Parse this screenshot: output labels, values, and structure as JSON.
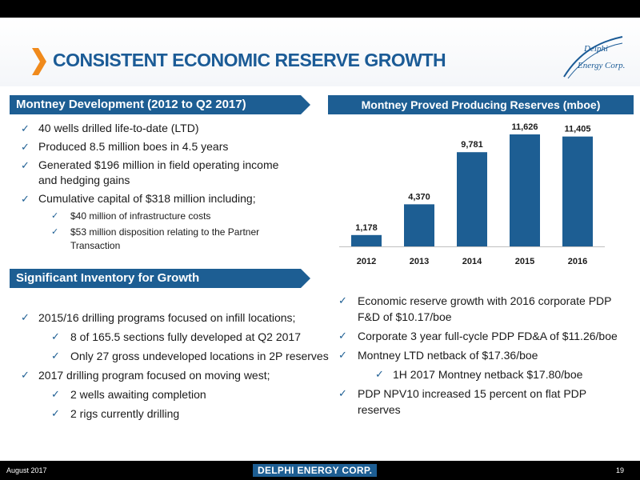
{
  "title": "CONSISTENT ECONOMIC RESERVE GROWTH",
  "logo": {
    "line1": "Delphi",
    "line2": "Energy",
    "line3": "Corp."
  },
  "section1": {
    "header": "Montney Development (2012 to Q2 2017)",
    "items": [
      {
        "level": 1,
        "text": "40 wells drilled life-to-date (LTD)"
      },
      {
        "level": 1,
        "text": "Produced 8.5 million boes in 4.5 years"
      },
      {
        "level": 1,
        "text": "Generated $196 million in field operating income and hedging gains"
      },
      {
        "level": 1,
        "text": "Cumulative capital of $318 million including;"
      },
      {
        "level": 2,
        "text": "$40 million of infrastructure costs"
      },
      {
        "level": 2,
        "text": "$53 million disposition relating to the Partner Transaction"
      }
    ]
  },
  "section2": {
    "header": "Significant Inventory for Growth",
    "items": [
      {
        "level": 1,
        "text": "2015/16 drilling programs focused on infill locations;"
      },
      {
        "level": 2,
        "text": "8 of 165.5 sections fully developed at Q2 2017"
      },
      {
        "level": 2,
        "text": "Only 27 gross undeveloped locations in 2P reserves"
      },
      {
        "level": 1,
        "text": "2017 drilling program focused on moving west;"
      },
      {
        "level": 2,
        "text": "2 wells awaiting completion"
      },
      {
        "level": 2,
        "text": "2 rigs currently drilling"
      }
    ]
  },
  "section3": {
    "items": [
      {
        "level": 1,
        "text": "Economic reserve growth with 2016 corporate PDP F&D of $10.17/boe"
      },
      {
        "level": 1,
        "text": "Corporate 3 year full-cycle PDP FD&A of $11.26/boe"
      },
      {
        "level": 1,
        "text": "Montney LTD netback of $17.36/boe"
      },
      {
        "level": 2,
        "text": "1H 2017 Montney netback $17.80/boe"
      },
      {
        "level": 1,
        "text": "PDP NPV10 increased 15 percent on flat PDP reserves"
      }
    ]
  },
  "chart_data": {
    "type": "bar",
    "title": "Montney Proved Producing Reserves (mboe)",
    "categories": [
      "2012",
      "2013",
      "2014",
      "2015",
      "2016"
    ],
    "values": [
      1178,
      4370,
      9781,
      11626,
      11405
    ],
    "value_labels": [
      "1,178",
      "4,370",
      "9,781",
      "11,626",
      "11,405"
    ],
    "ylim": [
      0,
      11626
    ],
    "grid": false,
    "bar_color": "#1d5e93"
  },
  "footer": {
    "date": "August 2017",
    "company": "DELPHI ENERGY CORP.",
    "page": "19"
  },
  "icons": {
    "check": "✓",
    "check_icon": "checkmark-icon",
    "chevron_icon": "chevron-right-icon"
  }
}
